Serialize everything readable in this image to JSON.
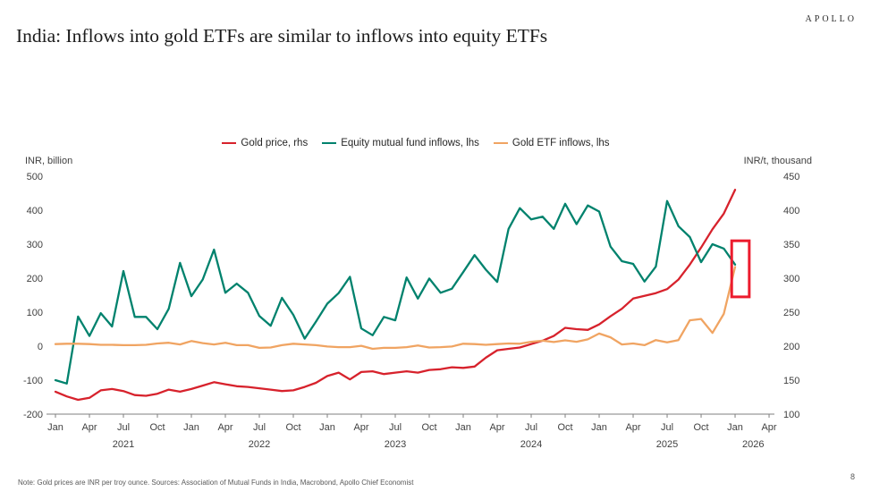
{
  "header": {
    "logo": "APOLLO",
    "title": "India: Inflows into gold ETFs are similar to inflows into equity ETFs"
  },
  "footer": {
    "note": "Note: Gold prices are INR per troy ounce. Sources: Association of Mutual Funds in India, Macrobond, Apollo Chief Economist",
    "page": "8"
  },
  "chart_data": {
    "type": "line",
    "x_start": "2021-01",
    "x_frequency": "monthly",
    "x_axis": {
      "quarter_labels": [
        "Jan",
        "Apr",
        "Jul",
        "Oct"
      ],
      "year_labels": [
        "2021",
        "2022",
        "2023",
        "2024",
        "2025",
        "2026"
      ],
      "last_tick": "2026-04"
    },
    "left_axis": {
      "label": "INR, billion",
      "min": -200,
      "max": 500,
      "ticks": [
        500,
        400,
        300,
        200,
        100,
        0,
        -100,
        -200
      ]
    },
    "right_axis": {
      "label": "INR/t, thousand",
      "min": 100,
      "max": 450,
      "ticks": [
        450,
        400,
        350,
        300,
        250,
        200,
        150,
        100
      ]
    },
    "series": [
      {
        "id": "gold-price",
        "name": "Gold price, rhs",
        "axis": "right",
        "color": "#d7222c",
        "values": [
          133,
          126,
          121,
          124,
          135,
          137,
          134,
          128,
          127,
          130,
          136,
          133,
          137,
          142,
          147,
          144,
          141,
          140,
          138,
          136,
          134,
          135,
          140,
          146,
          156,
          161,
          151,
          162,
          163,
          159,
          161,
          163,
          161,
          165,
          166,
          169,
          168,
          170,
          183,
          194,
          196,
          198,
          203,
          208,
          215,
          227,
          225,
          224,
          232,
          244,
          255,
          270,
          274,
          278,
          284,
          298,
          320,
          345,
          372,
          395,
          430
        ]
      },
      {
        "id": "equity-mutual-fund-inflows",
        "name": "Equity mutual fund inflows, lhs",
        "axis": "left",
        "color": "#00826d",
        "values": [
          -100,
          -110,
          87,
          30,
          97,
          58,
          221,
          86,
          86,
          50,
          110,
          245,
          147,
          196,
          284,
          157,
          184,
          157,
          89,
          60,
          142,
          92,
          22,
          72,
          125,
          156,
          204,
          52,
          32,
          86,
          76,
          202,
          140,
          199,
          157,
          169,
          218,
          268,
          225,
          189,
          345,
          406,
          373,
          381,
          345,
          419,
          359,
          414,
          396,
          293,
          250,
          242,
          190,
          234,
          427,
          353,
          321,
          247,
          300,
          287,
          240
        ]
      },
      {
        "id": "gold-etf-inflows",
        "name": "Gold ETF inflows, lhs",
        "axis": "left",
        "color": "#f0a462",
        "values": [
          6,
          7,
          7,
          6,
          4,
          4,
          3,
          3,
          4,
          8,
          10,
          5,
          15,
          9,
          5,
          10,
          3,
          3,
          -5,
          -4,
          3,
          7,
          5,
          3,
          -1,
          -3,
          -3,
          1,
          -8,
          -5,
          -5,
          -3,
          2,
          -4,
          -3,
          -1,
          7,
          6,
          4,
          6,
          8,
          7,
          13,
          16,
          12,
          17,
          13,
          20,
          37,
          26,
          5,
          8,
          3,
          18,
          11,
          18,
          76,
          80,
          39,
          95,
          233
        ]
      }
    ],
    "annotation_box": {
      "color": "#ec1c2e",
      "month_from": 59.7,
      "month_to": 61.25,
      "lhs_value_from": 145,
      "lhs_value_to": 310
    }
  }
}
